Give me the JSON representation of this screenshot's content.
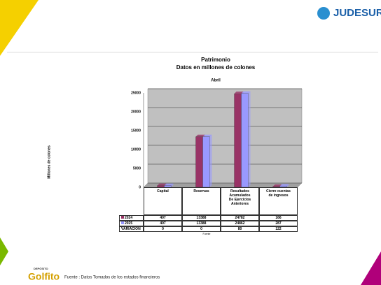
{
  "header": {
    "logo": "JUDESUR"
  },
  "chart_data": {
    "type": "bar",
    "title": "Patrimonio",
    "subtitle": "Datos en millones de colones",
    "period": "Abril",
    "y_label": "Millones de colones",
    "categories": [
      "Capital",
      "Reservas",
      "Resultados Acumulados De Ejercicios Anteriores",
      "Cierre cuentas de ingresos"
    ],
    "series": [
      {
        "name": "2024",
        "color": "#993366",
        "values": [
          407,
          13388,
          24782,
          166
        ]
      },
      {
        "name": "2025",
        "color": "#9999ff",
        "values": [
          407,
          13388,
          24862,
          287
        ]
      }
    ],
    "extra_row": {
      "name": "VARIACION",
      "values": [
        0,
        0,
        80,
        122
      ]
    },
    "table_note": "Fuente",
    "ylim": [
      0,
      25000
    ],
    "yticks": [
      0,
      5000,
      10000,
      15000,
      20000,
      25000
    ],
    "grid": true
  },
  "footer": {
    "brand_top": "DEPÓSITO",
    "brand": "Golfito",
    "source": "Fuente : Datos Tomados de los estados financieros"
  }
}
